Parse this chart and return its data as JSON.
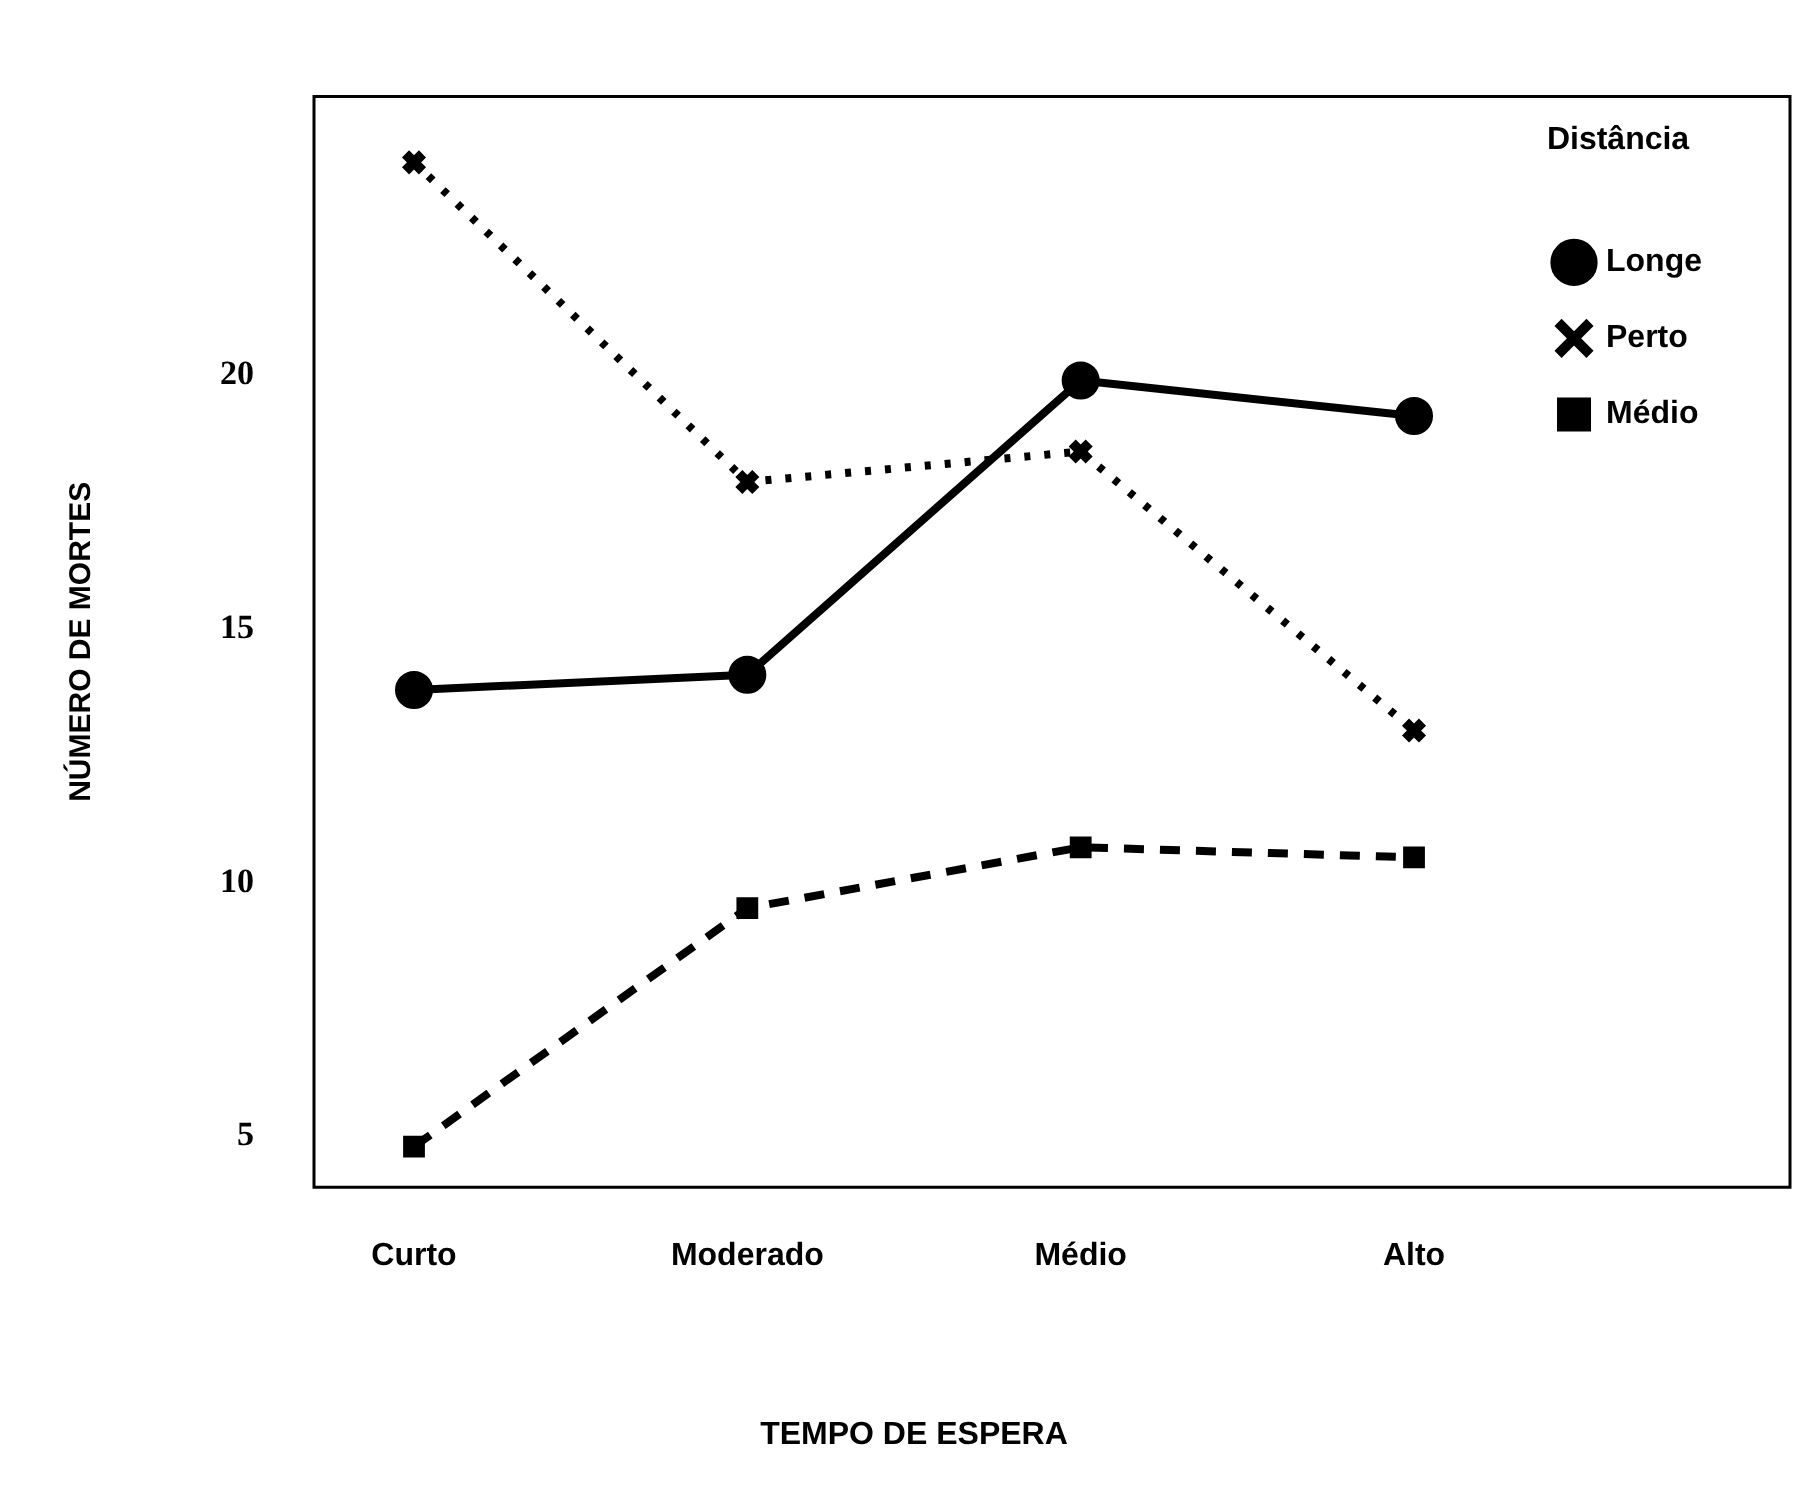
{
  "chart_data": {
    "type": "line",
    "xlabel": "TEMPO DE ESPERA",
    "ylabel": "NÚMERO DE MORTES",
    "legend_title": "Distância",
    "legend": "top right",
    "grid": false,
    "categories": [
      "Curto",
      "Moderado",
      "Médio",
      "Alto"
    ],
    "ylim": [
      4,
      25.5
    ],
    "yticks": [
      5,
      10,
      15,
      20
    ],
    "series": [
      {
        "name": "Longe",
        "color": "#000000",
        "marker": "circle",
        "line_style": "solid",
        "values": [
          13.8,
          14.1,
          19.9,
          19.2
        ]
      },
      {
        "name": "Perto",
        "color": "#000000",
        "marker": "cross",
        "line_style": "dotted",
        "values": [
          24.2,
          17.9,
          18.5,
          13.0
        ]
      },
      {
        "name": "Médio",
        "color": "#000000",
        "marker": "square",
        "line_style": "dashed",
        "values": [
          4.8,
          9.5,
          10.7,
          10.5
        ]
      }
    ]
  }
}
